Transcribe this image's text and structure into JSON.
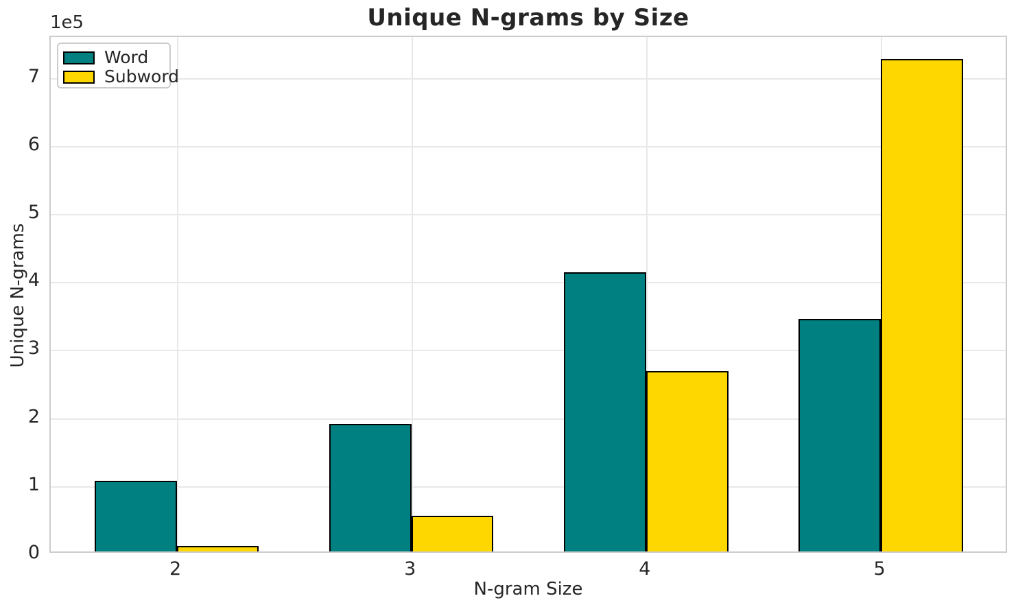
{
  "chart_data": {
    "type": "bar",
    "title": "Unique N-grams by Size",
    "xlabel": "N-gram Size",
    "ylabel": "Unique N-grams",
    "y_offset_label": "1e5",
    "categories": [
      "2",
      "3",
      "4",
      "5"
    ],
    "series": [
      {
        "name": "Word",
        "color": "#008080",
        "values": [
          104000,
          187000,
          410000,
          342000
        ]
      },
      {
        "name": "Subword",
        "color": "#ffd700",
        "values": [
          8000,
          52000,
          265000,
          724000
        ]
      }
    ],
    "ylim": [
      0,
      760000
    ],
    "ytick_step": 100000,
    "ytick_labels": [
      "0",
      "1",
      "2",
      "3",
      "4",
      "5",
      "6",
      "7"
    ],
    "grid": true,
    "legend_position": "upper-left",
    "bar_edge_color": "#000000",
    "grid_color": "#e8e8e8",
    "spine_color": "#cccccc",
    "text_color": "#262626"
  }
}
